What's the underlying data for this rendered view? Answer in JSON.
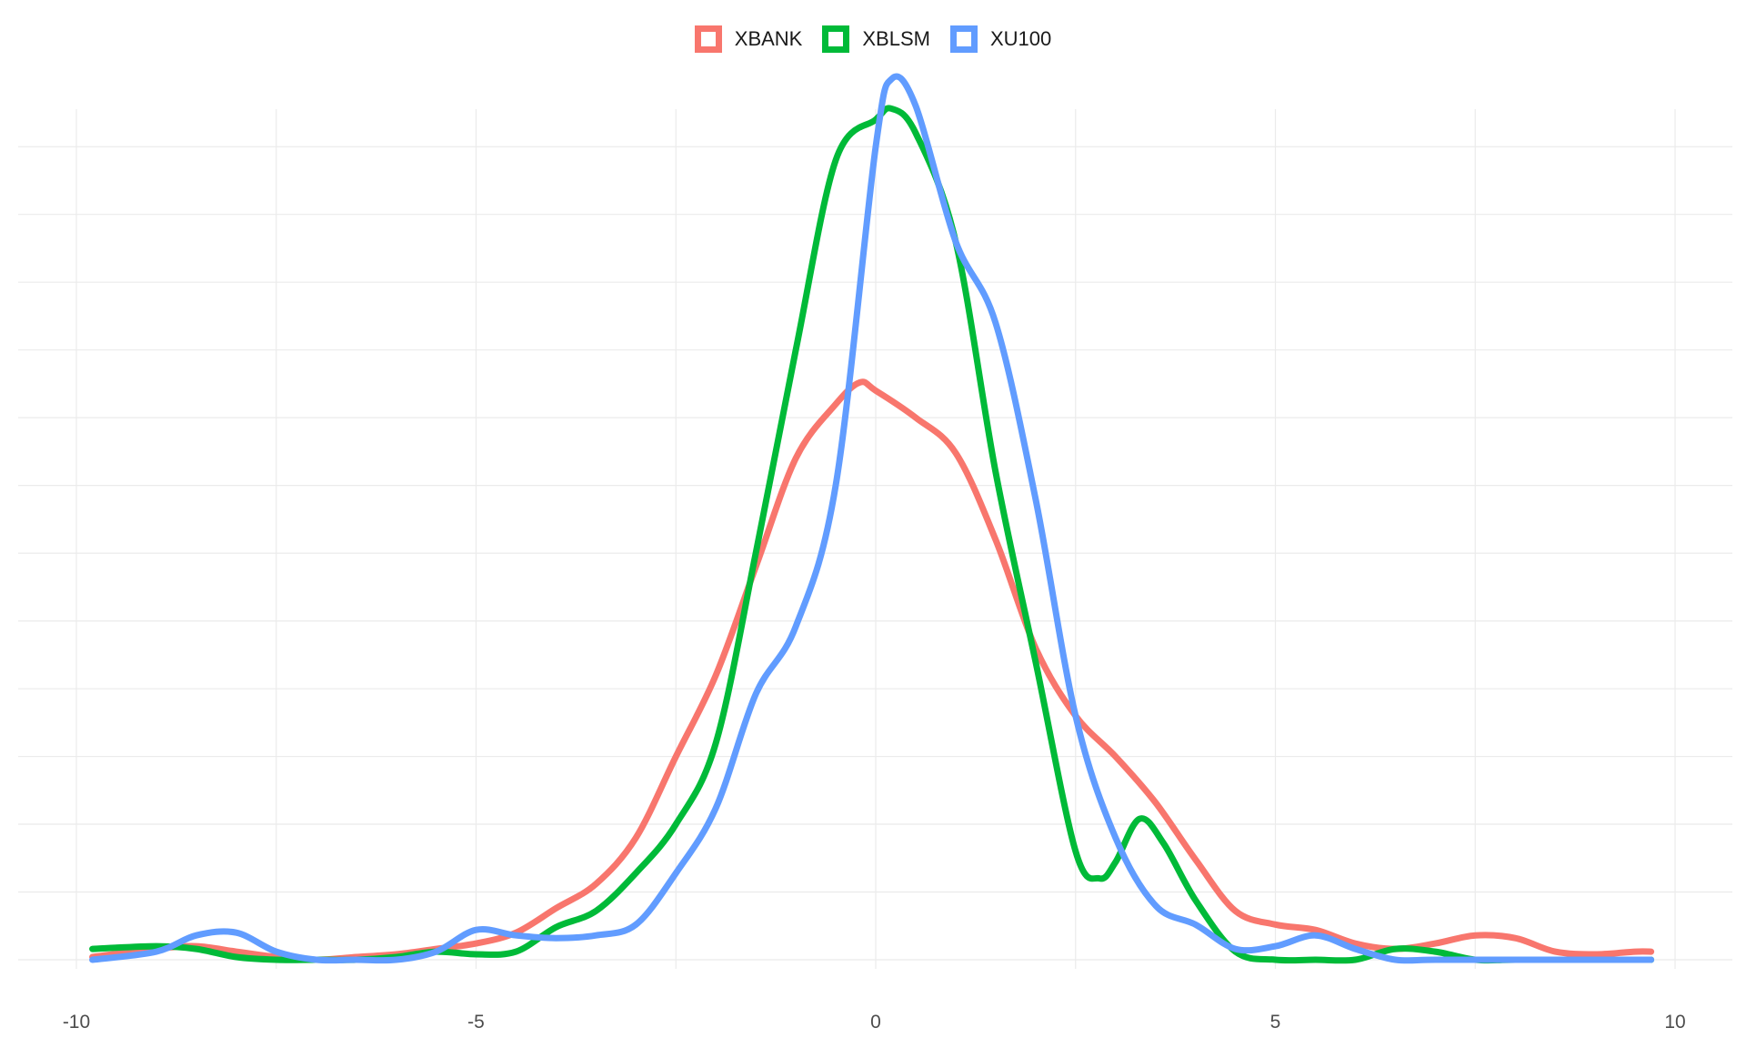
{
  "chart_data": {
    "type": "line",
    "title": "",
    "xlabel": "",
    "ylabel": "",
    "xlim": [
      -10,
      10
    ],
    "ylim": [
      0,
      0.35
    ],
    "x_ticks": [
      -10,
      -5,
      0,
      5,
      10
    ],
    "x_tick_labels": [
      "-10",
      "-5",
      "0",
      "5",
      "10"
    ],
    "y_gridlines": [
      0,
      0.05,
      0.1,
      0.15,
      0.2,
      0.25,
      0.3
    ],
    "grid": true,
    "legend_position": "top",
    "series": [
      {
        "name": "XBANK",
        "color": "#F8766D",
        "points": [
          [
            -9.8,
            0.001
          ],
          [
            -9.0,
            0.004
          ],
          [
            -8.5,
            0.005
          ],
          [
            -8.0,
            0.003
          ],
          [
            -7.5,
            0.001
          ],
          [
            -7.0,
            0.0
          ],
          [
            -6.5,
            0.001
          ],
          [
            -6.0,
            0.002
          ],
          [
            -5.5,
            0.004
          ],
          [
            -5.0,
            0.006
          ],
          [
            -4.5,
            0.01
          ],
          [
            -4.0,
            0.019
          ],
          [
            -3.5,
            0.028
          ],
          [
            -3.0,
            0.045
          ],
          [
            -2.5,
            0.075
          ],
          [
            -2.0,
            0.105
          ],
          [
            -1.5,
            0.145
          ],
          [
            -1.0,
            0.185
          ],
          [
            -0.5,
            0.205
          ],
          [
            -0.2,
            0.213
          ],
          [
            0.0,
            0.21
          ],
          [
            0.5,
            0.2
          ],
          [
            1.0,
            0.187
          ],
          [
            1.5,
            0.155
          ],
          [
            2.0,
            0.115
          ],
          [
            2.5,
            0.09
          ],
          [
            3.0,
            0.075
          ],
          [
            3.5,
            0.058
          ],
          [
            4.0,
            0.037
          ],
          [
            4.5,
            0.018
          ],
          [
            5.0,
            0.013
          ],
          [
            5.5,
            0.011
          ],
          [
            6.0,
            0.006
          ],
          [
            6.5,
            0.004
          ],
          [
            7.0,
            0.006
          ],
          [
            7.5,
            0.009
          ],
          [
            8.0,
            0.008
          ],
          [
            8.5,
            0.003
          ],
          [
            9.0,
            0.002
          ],
          [
            9.5,
            0.003
          ],
          [
            9.7,
            0.003
          ]
        ]
      },
      {
        "name": "XBLSM",
        "color": "#00BA38",
        "points": [
          [
            -9.8,
            0.004
          ],
          [
            -9.0,
            0.005
          ],
          [
            -8.5,
            0.004
          ],
          [
            -8.0,
            0.001
          ],
          [
            -7.5,
            0.0
          ],
          [
            -7.0,
            0.0
          ],
          [
            -6.5,
            0.0
          ],
          [
            -6.0,
            0.001
          ],
          [
            -5.5,
            0.003
          ],
          [
            -5.0,
            0.002
          ],
          [
            -4.5,
            0.003
          ],
          [
            -4.0,
            0.012
          ],
          [
            -3.5,
            0.018
          ],
          [
            -3.0,
            0.032
          ],
          [
            -2.5,
            0.05
          ],
          [
            -2.0,
            0.08
          ],
          [
            -1.5,
            0.15
          ],
          [
            -1.0,
            0.225
          ],
          [
            -0.5,
            0.295
          ],
          [
            0.0,
            0.31
          ],
          [
            0.2,
            0.314
          ],
          [
            0.5,
            0.305
          ],
          [
            1.0,
            0.265
          ],
          [
            1.5,
            0.18
          ],
          [
            2.0,
            0.11
          ],
          [
            2.5,
            0.04
          ],
          [
            2.8,
            0.03
          ],
          [
            3.0,
            0.036
          ],
          [
            3.3,
            0.052
          ],
          [
            3.6,
            0.043
          ],
          [
            4.0,
            0.022
          ],
          [
            4.5,
            0.003
          ],
          [
            5.0,
            0.0
          ],
          [
            5.5,
            0.0
          ],
          [
            6.0,
            0.0
          ],
          [
            6.5,
            0.004
          ],
          [
            7.0,
            0.003
          ],
          [
            7.5,
            0.0
          ],
          [
            8.0,
            0.0
          ],
          [
            9.0,
            0.0
          ],
          [
            9.7,
            0.0
          ]
        ]
      },
      {
        "name": "XU100",
        "color": "#619CFF",
        "points": [
          [
            -9.8,
            0.0
          ],
          [
            -9.0,
            0.003
          ],
          [
            -8.5,
            0.009
          ],
          [
            -8.0,
            0.01
          ],
          [
            -7.5,
            0.003
          ],
          [
            -7.0,
            0.0
          ],
          [
            -6.5,
            0.0
          ],
          [
            -6.0,
            0.0
          ],
          [
            -5.5,
            0.003
          ],
          [
            -5.0,
            0.011
          ],
          [
            -4.5,
            0.009
          ],
          [
            -4.0,
            0.008
          ],
          [
            -3.5,
            0.009
          ],
          [
            -3.0,
            0.013
          ],
          [
            -2.5,
            0.032
          ],
          [
            -2.0,
            0.056
          ],
          [
            -1.5,
            0.098
          ],
          [
            -1.0,
            0.123
          ],
          [
            -0.5,
            0.175
          ],
          [
            0.0,
            0.3
          ],
          [
            0.2,
            0.325
          ],
          [
            0.5,
            0.315
          ],
          [
            1.0,
            0.265
          ],
          [
            1.5,
            0.235
          ],
          [
            2.0,
            0.17
          ],
          [
            2.5,
            0.09
          ],
          [
            3.0,
            0.045
          ],
          [
            3.5,
            0.02
          ],
          [
            4.0,
            0.013
          ],
          [
            4.5,
            0.004
          ],
          [
            5.0,
            0.005
          ],
          [
            5.5,
            0.009
          ],
          [
            6.0,
            0.004
          ],
          [
            6.5,
            0.0
          ],
          [
            7.0,
            0.0
          ],
          [
            8.0,
            0.0
          ],
          [
            9.0,
            0.0
          ],
          [
            9.7,
            0.0
          ]
        ]
      }
    ]
  }
}
